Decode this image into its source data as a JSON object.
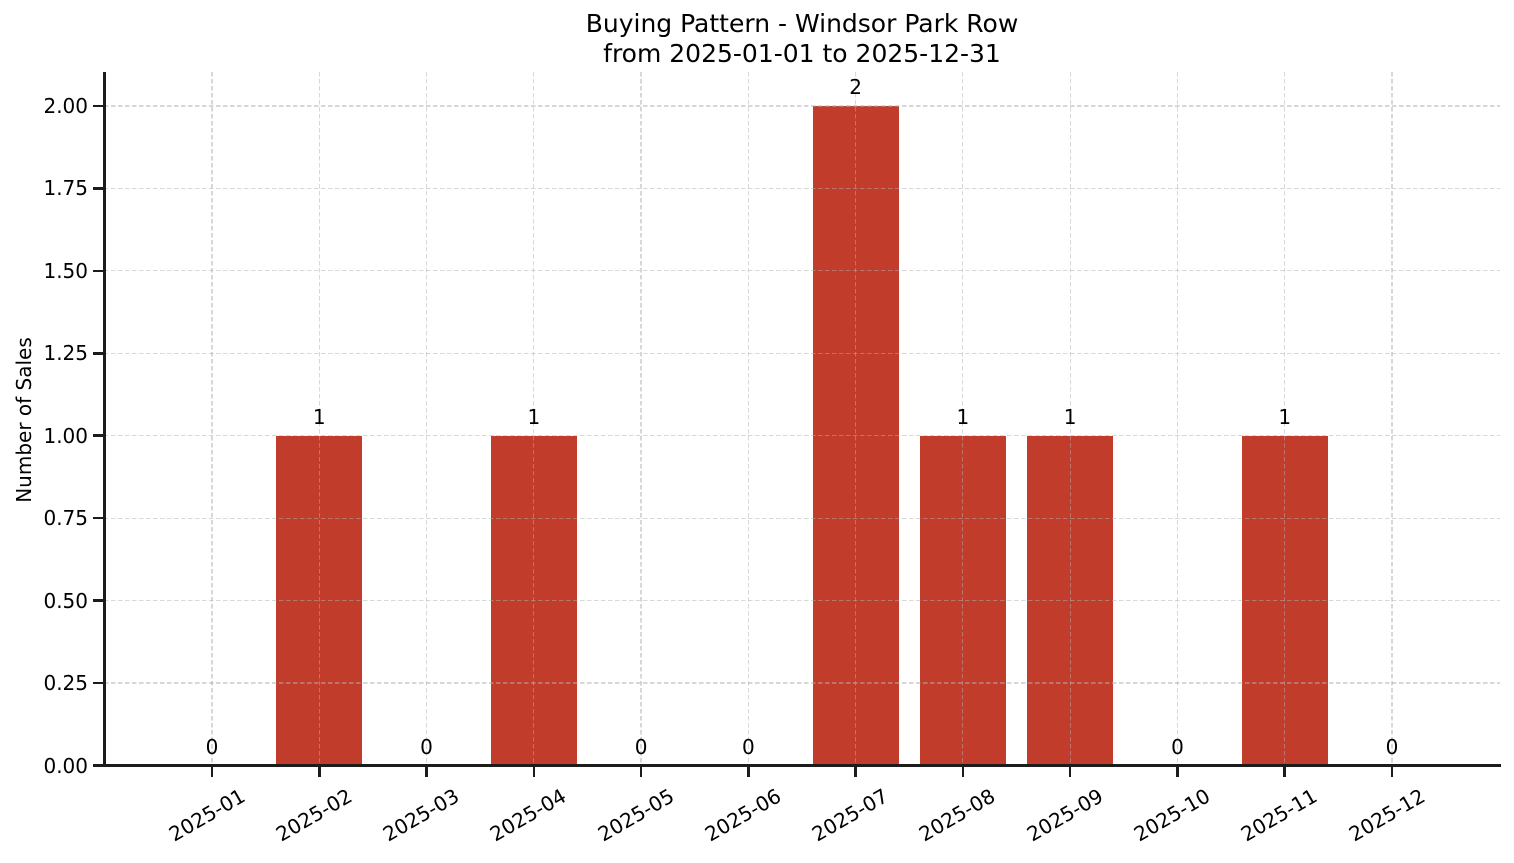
{
  "title": {
    "line1": "Buying Pattern - Windsor Park Row",
    "line2": "from 2025-01-01 to 2025-12-31"
  },
  "chart_data": {
    "type": "bar",
    "title": "Buying Pattern - Windsor Park Row\nfrom 2025-01-01 to 2025-12-31",
    "categories": [
      "2025-01",
      "2025-02",
      "2025-03",
      "2025-04",
      "2025-05",
      "2025-06",
      "2025-07",
      "2025-08",
      "2025-09",
      "2025-10",
      "2025-11",
      "2025-12"
    ],
    "values": [
      0,
      1,
      0,
      1,
      0,
      0,
      2,
      1,
      1,
      0,
      1,
      0
    ],
    "value_labels": [
      "0",
      "1",
      "0",
      "1",
      "0",
      "0",
      "2",
      "1",
      "1",
      "0",
      "1",
      "0"
    ],
    "xlabel": "",
    "ylabel": "Number of Sales",
    "ylim": [
      0,
      2.105
    ],
    "ytick_step": 0.25,
    "ytick_labels": [
      "0.00",
      "0.25",
      "0.50",
      "0.75",
      "1.00",
      "1.25",
      "1.50",
      "1.75",
      "2.00"
    ],
    "grid": true,
    "grid_linestyle": "dashed",
    "x_tick_rotation_deg": 30,
    "legend": null
  },
  "colors": {
    "bar": "#c23c2c",
    "grid": "#b0b0b0",
    "axis": "#1c1c1c",
    "text": "#000000",
    "background": "#ffffff"
  }
}
